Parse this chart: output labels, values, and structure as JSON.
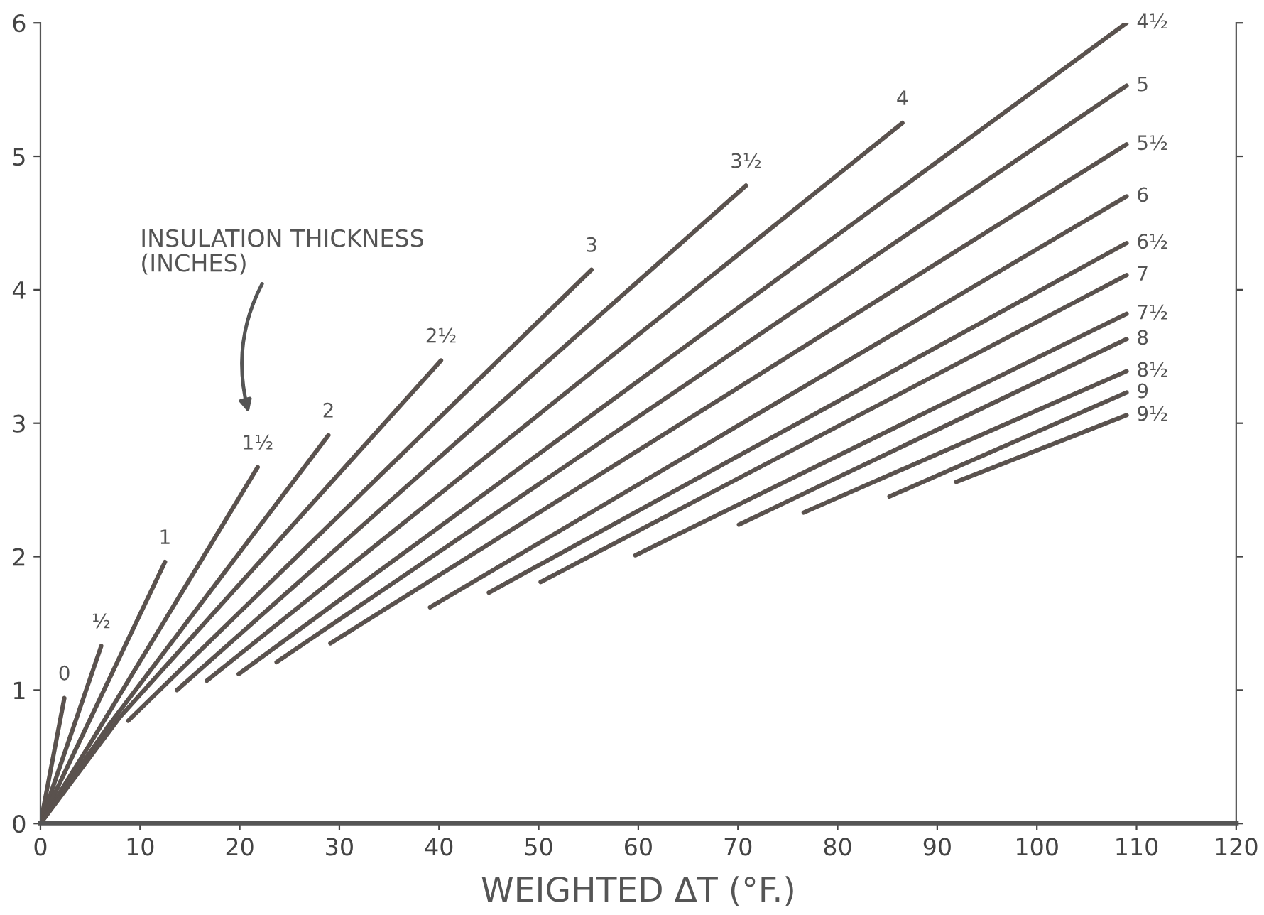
{
  "chart_data": {
    "type": "line",
    "xlabel": "WEIGHTED ΔT (°F.)",
    "xlim": [
      0,
      120
    ],
    "xticks": [
      0,
      10,
      20,
      30,
      40,
      50,
      60,
      70,
      80,
      90,
      100,
      110,
      120
    ],
    "ylim": [
      0,
      6
    ],
    "yticks": [
      0,
      1,
      2,
      3,
      4,
      5,
      6
    ],
    "grid": false,
    "marker": "none",
    "line_style": "solid",
    "annotations": [
      "INSULATION THICKNESS\n(INCHES)"
    ],
    "series": [
      {
        "name": "0",
        "color": "#5a524e",
        "x": [
          0,
          2.4
        ],
        "values": [
          0,
          0.94
        ]
      },
      {
        "name": "½",
        "color": "#5a524e",
        "x": [
          0,
          6.1
        ],
        "values": [
          0,
          1.33
        ]
      },
      {
        "name": "1",
        "color": "#5a524e",
        "x": [
          0,
          12.5
        ],
        "values": [
          0,
          1.96
        ]
      },
      {
        "name": "1½",
        "color": "#5a524e",
        "x": [
          0,
          5,
          21.8
        ],
        "values": [
          0,
          0.6,
          2.67
        ]
      },
      {
        "name": "2",
        "color": "#5a524e",
        "x": [
          0,
          7,
          28.9
        ],
        "values": [
          0,
          0.75,
          2.91
        ]
      },
      {
        "name": "2½",
        "color": "#5a524e",
        "x": [
          0,
          8,
          40.2
        ],
        "values": [
          0,
          0.8,
          3.47
        ]
      },
      {
        "name": "3",
        "color": "#5a524e",
        "x": [
          8.8,
          55.3
        ],
        "values": [
          0.77,
          4.15
        ]
      },
      {
        "name": "3½",
        "color": "#5a524e",
        "x": [
          13.7,
          70.8
        ],
        "values": [
          1.0,
          4.78
        ]
      },
      {
        "name": "4",
        "color": "#5a524e",
        "x": [
          16.7,
          86.5
        ],
        "values": [
          1.07,
          5.25
        ]
      },
      {
        "name": "4½",
        "color": "#5a524e",
        "x": [
          19.9,
          109
        ],
        "values": [
          1.12,
          6.0
        ]
      },
      {
        "name": "5",
        "color": "#5a524e",
        "x": [
          23.7,
          109
        ],
        "values": [
          1.21,
          5.53
        ]
      },
      {
        "name": "5½",
        "color": "#5a524e",
        "x": [
          29.1,
          109
        ],
        "values": [
          1.35,
          5.09
        ]
      },
      {
        "name": "6",
        "color": "#5a524e",
        "x": [
          39.1,
          109
        ],
        "values": [
          1.62,
          4.7
        ]
      },
      {
        "name": "6½",
        "color": "#5a524e",
        "x": [
          45.0,
          109
        ],
        "values": [
          1.73,
          4.35
        ]
      },
      {
        "name": "7",
        "color": "#5a524e",
        "x": [
          50.2,
          109
        ],
        "values": [
          1.81,
          4.11
        ]
      },
      {
        "name": "7½",
        "color": "#5a524e",
        "x": [
          59.7,
          109
        ],
        "values": [
          2.01,
          3.82
        ]
      },
      {
        "name": "8",
        "color": "#5a524e",
        "x": [
          70.1,
          109
        ],
        "values": [
          2.24,
          3.63
        ]
      },
      {
        "name": "8½",
        "color": "#5a524e",
        "x": [
          76.6,
          109
        ],
        "values": [
          2.33,
          3.39
        ]
      },
      {
        "name": "9",
        "color": "#5a524e",
        "x": [
          85.2,
          109
        ],
        "values": [
          2.45,
          3.23
        ]
      },
      {
        "name": "9½",
        "color": "#5a524e",
        "x": [
          91.9,
          109
        ],
        "values": [
          2.56,
          3.06
        ]
      }
    ]
  }
}
